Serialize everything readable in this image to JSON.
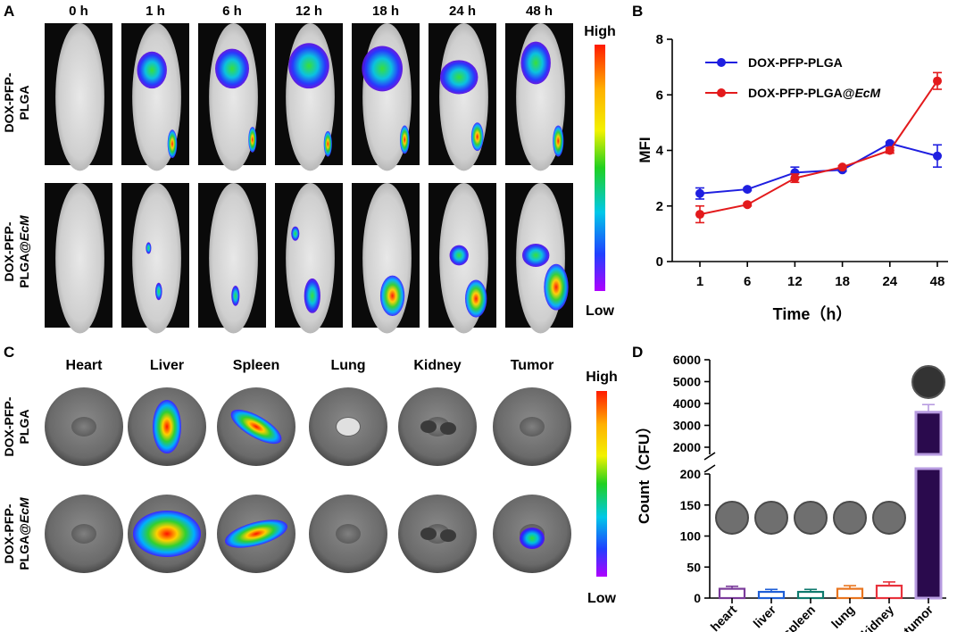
{
  "panels": {
    "A": {
      "label": "A",
      "timepoints": [
        "0 h",
        "1 h",
        "6 h",
        "12 h",
        "18 h",
        "24 h",
        "48 h"
      ],
      "row1": [
        "DOX-PFP-",
        "PLGA"
      ],
      "row2_a": "DOX-PFP-",
      "row2_b": "PLGA@",
      "row2_c": "EcM",
      "scale_high": "High",
      "scale_low": "Low"
    },
    "B": {
      "label": "B"
    },
    "C": {
      "label": "C",
      "organs": [
        "Heart",
        "Liver",
        "Spleen",
        "Lung",
        "Kidney",
        "Tumor"
      ],
      "scale_high": "High",
      "scale_low": "Low"
    },
    "D": {
      "label": "D"
    }
  },
  "colors": {
    "blue": "#1f1fe0",
    "red": "#e31a1c",
    "heart": "#7a3b9a",
    "liver": "#1f5fd6",
    "spleen": "#0f7a6e",
    "lung": "#e8741e",
    "kidney": "#e8323c",
    "tumor": "#2a0a4d",
    "tumor_light": "#b79be0"
  },
  "chart_data": [
    {
      "type": "line",
      "panel": "B",
      "categories": [
        "1",
        "6",
        "12",
        "18",
        "24",
        "48"
      ],
      "xlabel": "Time（h）",
      "ylabel": "MFI",
      "ylim": [
        0,
        8
      ],
      "yticks": [
        "0",
        "2",
        "4",
        "6",
        "8"
      ],
      "legend": "top-left",
      "series": [
        {
          "name": "DOX-PFP-PLGA",
          "values": [
            2.45,
            2.6,
            3.2,
            3.3,
            4.25,
            3.8
          ],
          "errors": [
            0.2,
            0.05,
            0.2,
            0.05,
            0.05,
            0.4
          ]
        },
        {
          "name": "DOX-PFP-PLGA@",
          "name_italic": "EcM",
          "values": [
            1.7,
            2.05,
            3.0,
            3.4,
            4.0,
            6.5
          ],
          "errors": [
            0.3,
            0.05,
            0.15,
            0.05,
            0.1,
            0.3
          ]
        }
      ]
    },
    {
      "type": "bar",
      "panel": "D",
      "categories": [
        "heart",
        "liver",
        "spleen",
        "lung",
        "kidney",
        "tumor"
      ],
      "values": [
        15,
        10,
        10,
        15,
        20,
        3600
      ],
      "errors": [
        4,
        4,
        4,
        5,
        6,
        350
      ],
      "ylabel": "Count（CFU）",
      "yticks_low": [
        "0",
        "50",
        "100",
        "150",
        "200"
      ],
      "yticks_high": [
        "2000",
        "3000",
        "4000",
        "5000",
        "6000"
      ],
      "axis_break": [
        200,
        1500
      ]
    }
  ]
}
